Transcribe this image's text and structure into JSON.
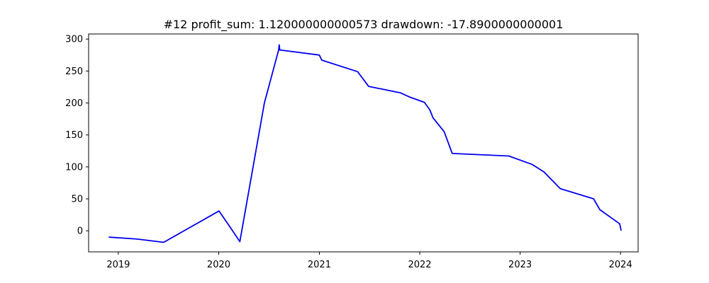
{
  "chart_data": {
    "type": "line",
    "title": "#12   profit_sum: 1.120000000000573 drawdown: -17.8900000000001",
    "xlabel": "",
    "ylabel": "",
    "x_axis_type": "date",
    "xlim": [
      "2018-09-15",
      "2024-03-05"
    ],
    "ylim": [
      -33,
      308
    ],
    "grid": false,
    "x_ticks": [
      {
        "value": "2019-01-01",
        "label": "2019"
      },
      {
        "value": "2020-01-01",
        "label": "2020"
      },
      {
        "value": "2021-01-01",
        "label": "2021"
      },
      {
        "value": "2022-01-01",
        "label": "2022"
      },
      {
        "value": "2023-01-01",
        "label": "2023"
      },
      {
        "value": "2024-01-01",
        "label": "2024"
      }
    ],
    "y_ticks": [
      {
        "value": 0,
        "label": "0"
      },
      {
        "value": 50,
        "label": "50"
      },
      {
        "value": 100,
        "label": "100"
      },
      {
        "value": 150,
        "label": "150"
      },
      {
        "value": 200,
        "label": "200"
      },
      {
        "value": 250,
        "label": "250"
      },
      {
        "value": 300,
        "label": "300"
      }
    ],
    "series": [
      {
        "color": "#0000ee",
        "points": [
          {
            "x": "2018-11-29",
            "y": -10
          },
          {
            "x": "2019-03-10",
            "y": -13
          },
          {
            "x": "2019-06-15",
            "y": -18
          },
          {
            "x": "2020-01-02",
            "y": 31
          },
          {
            "x": "2020-02-05",
            "y": 10
          },
          {
            "x": "2020-03-18",
            "y": -17
          },
          {
            "x": "2020-06-15",
            "y": 200
          },
          {
            "x": "2020-08-06",
            "y": 283
          },
          {
            "x": "2020-08-08",
            "y": 291
          },
          {
            "x": "2020-08-10",
            "y": 283
          },
          {
            "x": "2021-01-01",
            "y": 275
          },
          {
            "x": "2021-01-10",
            "y": 267
          },
          {
            "x": "2021-05-20",
            "y": 249
          },
          {
            "x": "2021-06-29",
            "y": 226
          },
          {
            "x": "2021-10-22",
            "y": 216
          },
          {
            "x": "2021-11-27",
            "y": 209
          },
          {
            "x": "2022-01-18",
            "y": 201
          },
          {
            "x": "2022-02-07",
            "y": 189
          },
          {
            "x": "2022-02-18",
            "y": 177
          },
          {
            "x": "2022-03-31",
            "y": 155
          },
          {
            "x": "2022-04-29",
            "y": 121
          },
          {
            "x": "2022-11-21",
            "y": 117
          },
          {
            "x": "2023-02-13",
            "y": 104
          },
          {
            "x": "2023-03-29",
            "y": 92
          },
          {
            "x": "2023-05-27",
            "y": 66
          },
          {
            "x": "2023-09-25",
            "y": 50
          },
          {
            "x": "2023-10-18",
            "y": 33
          },
          {
            "x": "2023-12-29",
            "y": 11
          },
          {
            "x": "2024-01-03",
            "y": 1
          }
        ]
      }
    ]
  }
}
